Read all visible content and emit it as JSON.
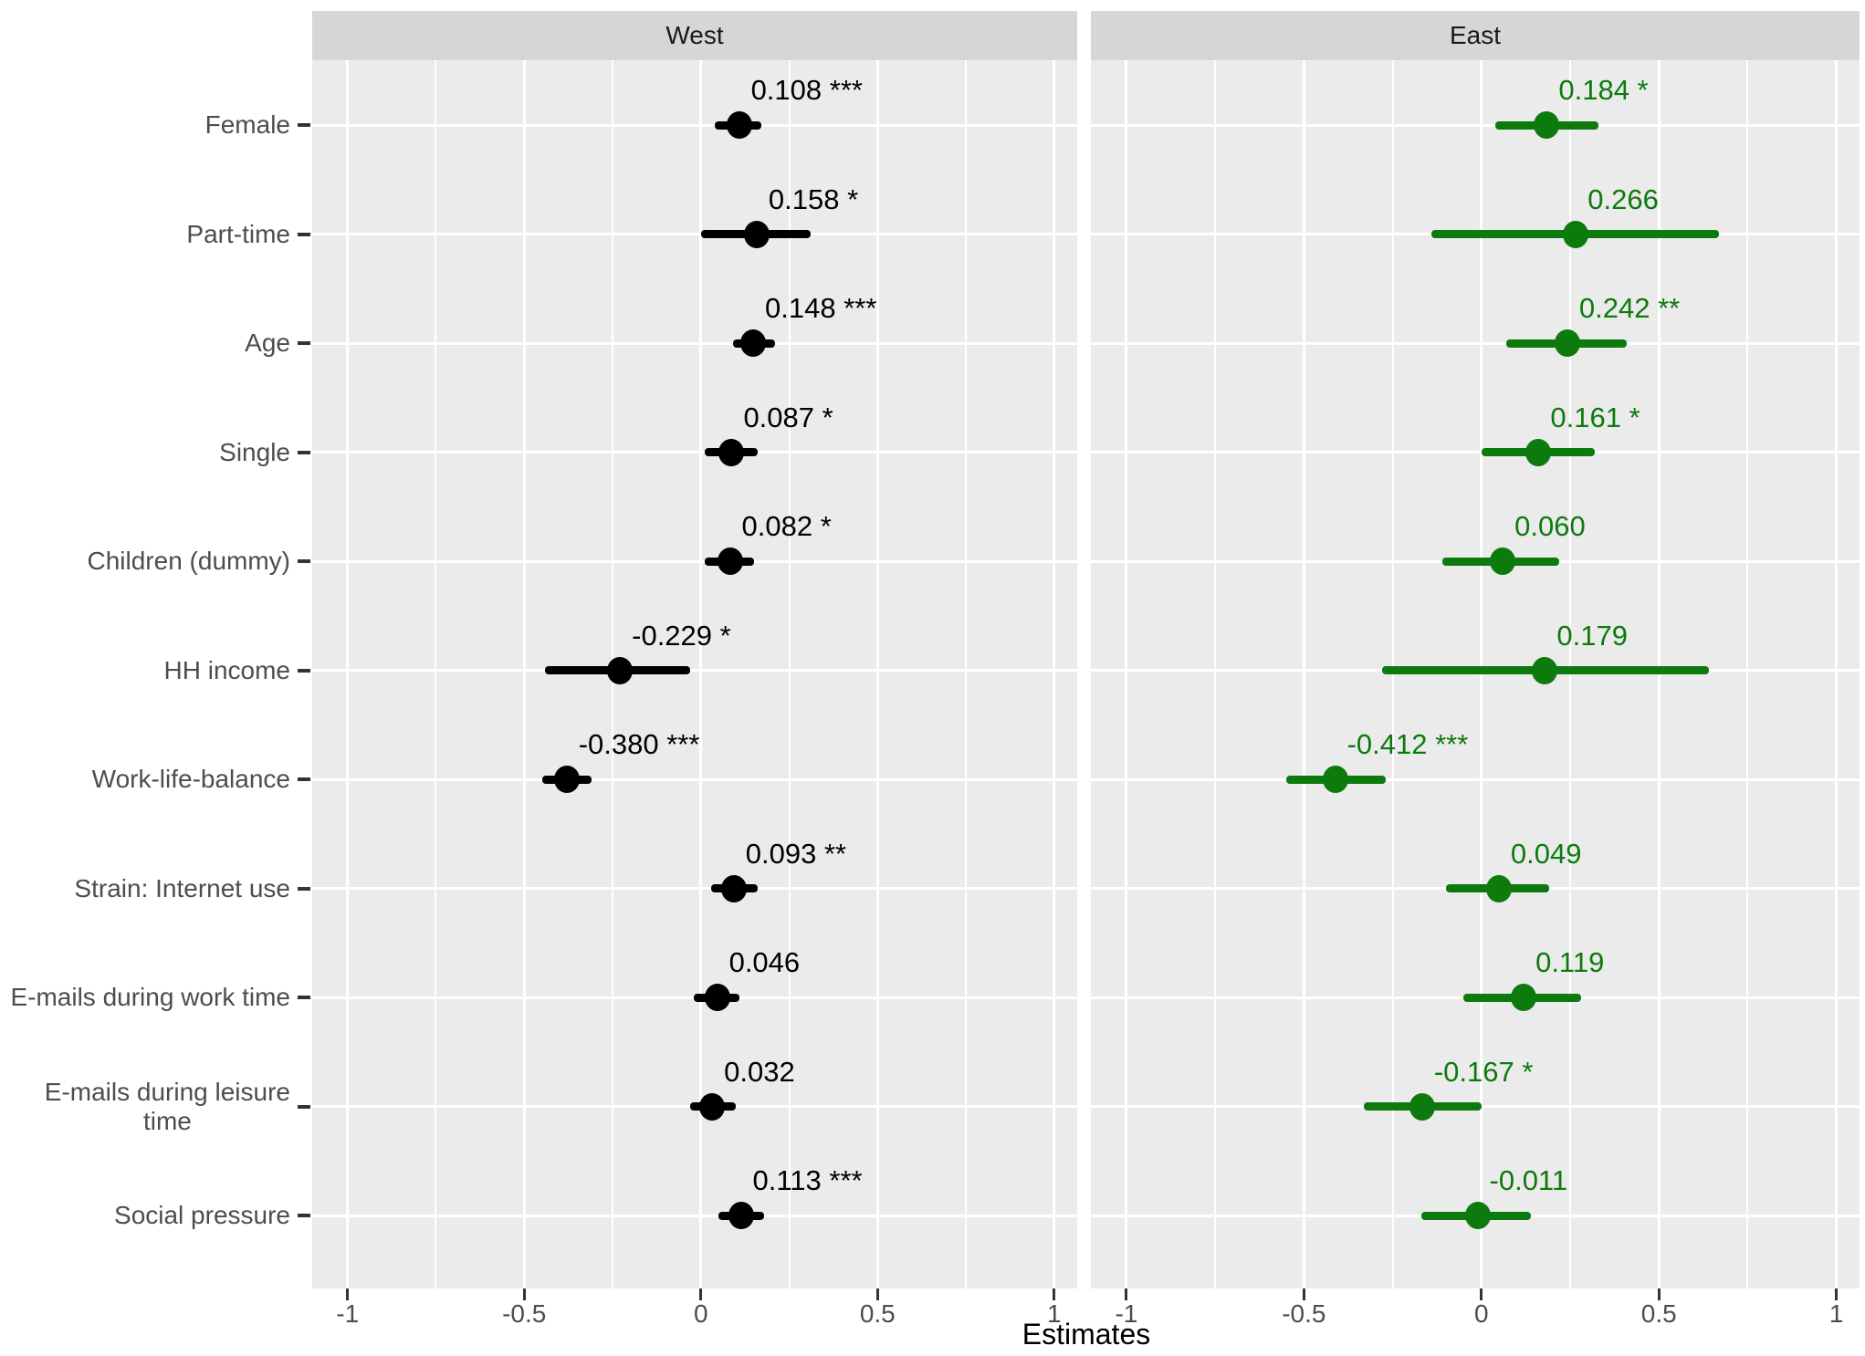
{
  "chart_data": {
    "type": "forest",
    "description": "Dot-and-whisker coefficient plot with two facets (West, East), 11 predictors, estimates with confidence intervals and significance stars",
    "xlabel": "Estimates",
    "x_ticks": [
      -1,
      -0.5,
      0,
      0.5,
      1
    ],
    "x_tick_labels": [
      "-1",
      "-0.5",
      "0",
      "0.5",
      "1"
    ],
    "x_minor_ticks": [
      -0.75,
      -0.25,
      0.25,
      0.75
    ],
    "xlim": [
      -1.1,
      1.065
    ],
    "grid": "white major and minor gridlines on grey panel",
    "legend": "none",
    "categories": [
      {
        "label": "Female",
        "wrap": [
          "Female"
        ]
      },
      {
        "label": "Part-time",
        "wrap": [
          "Part-time"
        ]
      },
      {
        "label": "Age",
        "wrap": [
          "Age"
        ]
      },
      {
        "label": "Single",
        "wrap": [
          "Single"
        ]
      },
      {
        "label": "Children (dummy)",
        "wrap": [
          "Children (dummy)"
        ]
      },
      {
        "label": "HH income",
        "wrap": [
          "HH income"
        ]
      },
      {
        "label": "Work-life-balance",
        "wrap": [
          "Work-life-balance"
        ]
      },
      {
        "label": "Strain: Internet use",
        "wrap": [
          "Strain: Internet use"
        ]
      },
      {
        "label": "E-mails during work time",
        "wrap": [
          "E-mails during work time"
        ]
      },
      {
        "label": "E-mails during leisure time",
        "wrap": [
          "E-mails during leisure",
          "time"
        ]
      },
      {
        "label": "Social pressure",
        "wrap": [
          "Social pressure"
        ]
      }
    ],
    "panels": [
      {
        "name": "West",
        "color": "#000000",
        "points": [
          {
            "category": "Female",
            "estimate": 0.108,
            "ci": [
              0.04,
              0.17
            ],
            "stars": "***",
            "label": "0.108 ***"
          },
          {
            "category": "Part-time",
            "estimate": 0.158,
            "ci": [
              0.0,
              0.31
            ],
            "stars": "*",
            "label": "0.158 *"
          },
          {
            "category": "Age",
            "estimate": 0.148,
            "ci": [
              0.09,
              0.21
            ],
            "stars": "***",
            "label": "0.148 ***"
          },
          {
            "category": "Single",
            "estimate": 0.087,
            "ci": [
              0.01,
              0.16
            ],
            "stars": "*",
            "label": "0.087 *"
          },
          {
            "category": "Children (dummy)",
            "estimate": 0.082,
            "ci": [
              0.01,
              0.15
            ],
            "stars": "*",
            "label": "0.082 *"
          },
          {
            "category": "HH income",
            "estimate": -0.229,
            "ci": [
              -0.44,
              -0.03
            ],
            "stars": "*",
            "label": "-0.229 *"
          },
          {
            "category": "Work-life-balance",
            "estimate": -0.38,
            "ci": [
              -0.45,
              -0.31
            ],
            "stars": "***",
            "label": "-0.380 ***"
          },
          {
            "category": "Strain: Internet use",
            "estimate": 0.093,
            "ci": [
              0.03,
              0.16
            ],
            "stars": "**",
            "label": "0.093 **"
          },
          {
            "category": "E-mails during work time",
            "estimate": 0.046,
            "ci": [
              -0.02,
              0.11
            ],
            "stars": "",
            "label": "0.046"
          },
          {
            "category": "E-mails during leisure time",
            "estimate": 0.032,
            "ci": [
              -0.03,
              0.1
            ],
            "stars": "",
            "label": "0.032"
          },
          {
            "category": "Social pressure",
            "estimate": 0.113,
            "ci": [
              0.05,
              0.18
            ],
            "stars": "***",
            "label": "0.113 ***"
          }
        ]
      },
      {
        "name": "East",
        "color": "#0d7a0d",
        "points": [
          {
            "category": "Female",
            "estimate": 0.184,
            "ci": [
              0.04,
              0.33
            ],
            "stars": "*",
            "label": "0.184 *"
          },
          {
            "category": "Part-time",
            "estimate": 0.266,
            "ci": [
              -0.14,
              0.67
            ],
            "stars": "",
            "label": "0.266"
          },
          {
            "category": "Age",
            "estimate": 0.242,
            "ci": [
              0.07,
              0.41
            ],
            "stars": "**",
            "label": "0.242 **"
          },
          {
            "category": "Single",
            "estimate": 0.161,
            "ci": [
              0.0,
              0.32
            ],
            "stars": "*",
            "label": "0.161 *"
          },
          {
            "category": "Children (dummy)",
            "estimate": 0.06,
            "ci": [
              -0.11,
              0.22
            ],
            "stars": "",
            "label": "0.060"
          },
          {
            "category": "HH income",
            "estimate": 0.179,
            "ci": [
              -0.28,
              0.64
            ],
            "stars": "",
            "label": "0.179"
          },
          {
            "category": "Work-life-balance",
            "estimate": -0.412,
            "ci": [
              -0.55,
              -0.27
            ],
            "stars": "***",
            "label": "-0.412 ***"
          },
          {
            "category": "Strain: Internet use",
            "estimate": 0.049,
            "ci": [
              -0.1,
              0.19
            ],
            "stars": "",
            "label": "0.049"
          },
          {
            "category": "E-mails during work time",
            "estimate": 0.119,
            "ci": [
              -0.05,
              0.28
            ],
            "stars": "",
            "label": "0.119"
          },
          {
            "category": "E-mails during leisure time",
            "estimate": -0.167,
            "ci": [
              -0.33,
              0.0
            ],
            "stars": "*",
            "label": "-0.167 *"
          },
          {
            "category": "Social pressure",
            "estimate": -0.011,
            "ci": [
              -0.17,
              0.14
            ],
            "stars": "",
            "label": "-0.011"
          }
        ]
      }
    ],
    "colors": {
      "panel_background": "#ebebeb",
      "strip_background": "#d6d6d6",
      "gridline": "#ffffff",
      "west_series": "#000000",
      "east_series": "#0d7a0d",
      "axis_text": "#4d4d4d",
      "strip_text": "#1a1a1a",
      "tick_mark": "#333333"
    }
  }
}
